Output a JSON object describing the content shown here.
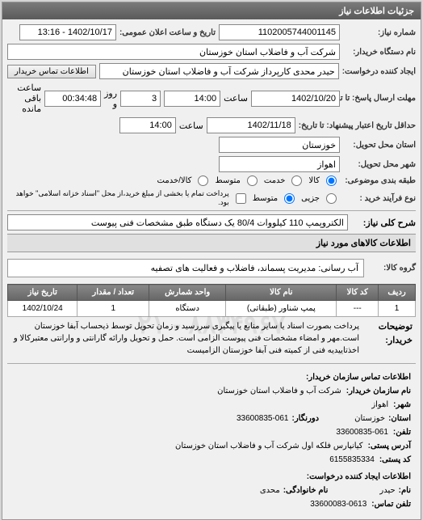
{
  "panel_header": "جزئیات اطلاعات نیاز",
  "fields": {
    "request_no_label": "شماره نیاز:",
    "request_no": "1102005744001145",
    "public_date_label": "تاریخ و ساعت اعلان عمومی:",
    "public_date": "1402/10/17 - 13:16",
    "buyer_org_label": "نام دستگاه خریدار:",
    "buyer_org": "شرکت آب و فاضلاب استان خوزستان",
    "creator_label": "ایجاد کننده درخواست:",
    "creator": "حیدر محدی کارپرداز شرکت آب و فاضلاب استان خوزستان",
    "contact_btn": "اطلاعات تماس خریدار",
    "reply_deadline_label": "مهلت ارسال پاسخ: تا تاریخ:",
    "reply_date": "1402/10/20",
    "reply_time_label": "ساعت",
    "reply_time": "14:00",
    "remain_days": "3",
    "remain_days_label": "روز و",
    "remain_time": "00:34:48",
    "remain_time_label": "ساعت باقی مانده",
    "validity_label": "حداقل تاریخ اعتبار پیشنهاد: تا تاریخ:",
    "validity_date": "1402/11/18",
    "validity_time": "14:00",
    "province_label": "استان محل تحویل:",
    "province": "خوزستان",
    "city_label": "شهر محل تحویل:",
    "city": "اهواز",
    "category_label": "طبقه بندی موضوعی:",
    "cat_all": "کالا",
    "cat_service": "خدمت",
    "cat_medium": "متوسط",
    "cat_small": "کالا/خدمت",
    "purchase_type_label": "نوع فرآیند خرید :",
    "pt_partial": "جزیی",
    "pt_medium": "متوسط",
    "pt_note": "پرداخت تمام یا بخشی از مبلغ خرید،از محل \"اسناد خزانه اسلامی\" خواهد بود.",
    "need_title_label": "شرح کلی نیاز:",
    "need_title": "الکتروپمپ 110 کیلووات 80/4 یک دستگاه طبق مشخصات فنی پیوست",
    "goods_info_title": "اطلاعات کالاهای مورد نیاز",
    "goods_group_label": "گروه کالا:",
    "goods_group": "آب رسانی: مدیریت پسماند، فاضلاب و فعالیت های تصفیه"
  },
  "table": {
    "headers": [
      "ردیف",
      "کد کالا",
      "نام کالا",
      "واحد شمارش",
      "تعداد / مقدار",
      "تاریخ نیاز"
    ],
    "rows": [
      [
        "1",
        "---",
        "پمپ شناور (طبقاتی)",
        "دستگاه",
        "1",
        "1402/10/24"
      ]
    ]
  },
  "buyer_notes": {
    "label": "توضیحات خریدار:",
    "text": "پرداخت بصورت اسناد یا سایر منابع یا پیگیری سررسید و زمان تحویل توسط ذیحساب آبفا خوزستان است.مهر و امضاء مشخصات فنی پیوست الزامی است. حمل و تحویل وارائه گارانتی و وارانتی معتبرکالا و اخذتاییدیه فنی از کمیته فنی آبفا خوزستان الزامیست"
  },
  "watermark_text": "۸۸۳۴۹۶۷۰ - ۰۲۱",
  "contact": {
    "section_title": "اطلاعات تماس سازمان خریدار:",
    "org_label": "نام سازمان خریدار:",
    "org": "شرکت آب و فاضلاب استان خوزستان",
    "city_label": "شهر:",
    "city": "اهواز",
    "province_label": "استان:",
    "province": "خوزستان",
    "fax_label": "دورنگار:",
    "fax": "33600835-061",
    "phone_label": "تلفن:",
    "phone": "33600835-061",
    "postal_address_label": "آدرس پستی:",
    "postal_address": "کیانپارس فلکه اول شرکت آب و فاضلاب استان خوزستان",
    "postal_code_label": "کد پستی:",
    "postal_code": "6155835334",
    "req_creator_title": "اطلاعات ایجاد کننده درخواست:",
    "name_label": "نام:",
    "name": "حیدر",
    "lname_label": "نام خانوادگی:",
    "lname": "محدی",
    "tel_label": "تلفن تماس:",
    "tel": "33600083-0613"
  }
}
